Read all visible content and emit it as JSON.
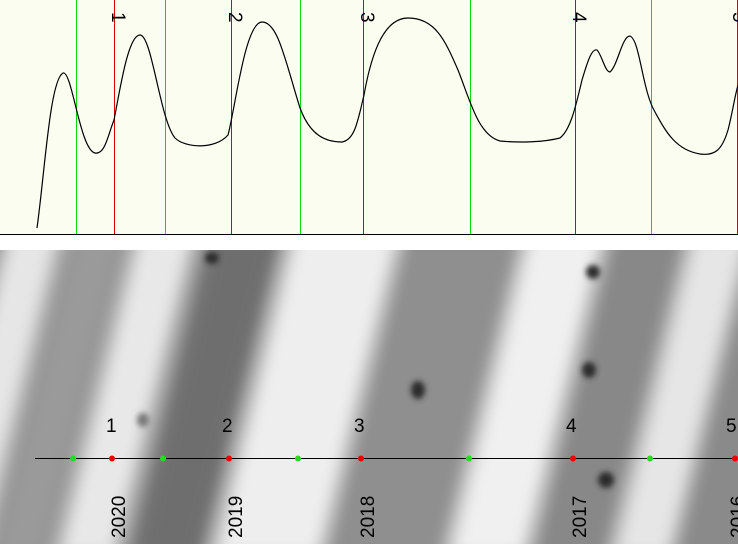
{
  "rings": [
    {
      "number": "1",
      "year": "2020"
    },
    {
      "number": "2",
      "year": "2019"
    },
    {
      "number": "3",
      "year": "2018"
    },
    {
      "number": "4",
      "year": "2017"
    },
    {
      "number": "5",
      "year": "2016"
    }
  ]
}
